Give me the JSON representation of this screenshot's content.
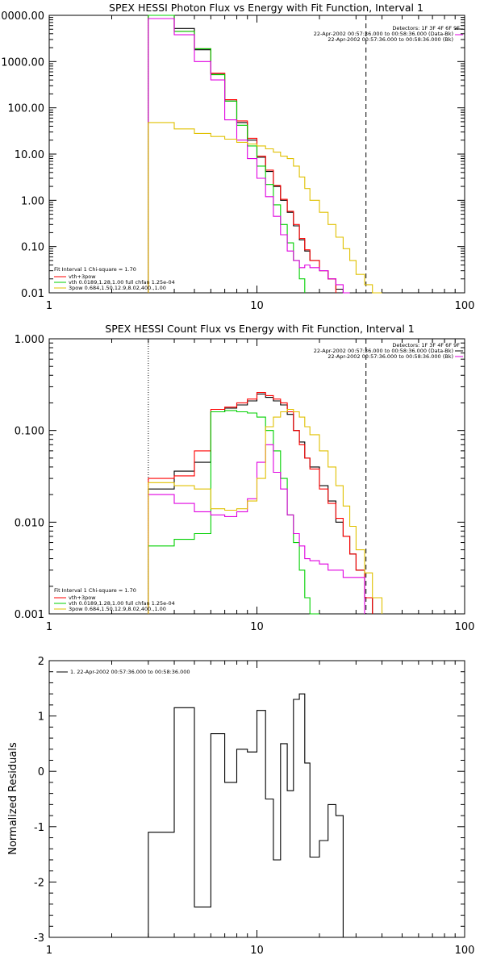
{
  "chart_data": [
    {
      "type": "line",
      "step": true,
      "title": "SPEX HESSI Photon Flux vs Energy with Fit Function, Interval 1",
      "xlabel": "",
      "ylabel": "",
      "xscale": "log",
      "yscale": "log",
      "xlim": [
        1,
        100
      ],
      "ylim": [
        0.01,
        10000
      ],
      "xticks": [
        "1",
        "10",
        "100"
      ],
      "yticks": [
        "0.01",
        "0.10",
        "1.00",
        "10.00",
        "100.00",
        "1000.00",
        "10000.00"
      ],
      "header_lines": [
        "Detectors: 1F 3F 4F 6F 9F",
        "22-Apr-2002 00:57:36.000 to 00:58:36.000 (Data-Bk)",
        "22-Apr-2002 00:57:36.000 to 00:58:36.000 (Bk)"
      ],
      "legend_lines": [
        "Fit Interval 1   Chi-square = 1.70",
        "vth+3pow",
        "vth 0.0189,1.28,1.00  full chfan 1.25e-04",
        "3pow 0.684,1.50,12.9,8.02,400.,1.00"
      ],
      "vlines": [
        {
          "x": 3.0,
          "style": "dotted",
          "color": "#00b000"
        },
        {
          "x": 33.5,
          "style": "dashed",
          "color": "#000000"
        }
      ],
      "edges": [
        3,
        4,
        5,
        6,
        7,
        8,
        9,
        10,
        11,
        12,
        13,
        14,
        15,
        16,
        17,
        18,
        20,
        22,
        24,
        26,
        28,
        30,
        33,
        36,
        40
      ],
      "series": [
        {
          "color": "#000000",
          "values": [
            10000,
            5200,
            1800,
            550,
            140,
            48,
            20,
            8.5,
            4.2,
            2.0,
            1.0,
            0.55,
            0.28,
            0.14,
            0.08,
            0.05,
            0.03,
            0.02,
            0.012,
            0.008,
            null,
            null,
            null,
            null
          ]
        },
        {
          "color": "#ff0000",
          "values": [
            10000,
            4500,
            1900,
            560,
            150,
            52,
            22,
            9,
            4.5,
            2.1,
            1.05,
            0.58,
            0.3,
            0.15,
            0.085,
            0.05,
            0.03,
            0.02,
            null,
            null,
            null,
            null,
            null,
            null
          ]
        },
        {
          "color": "#00d000",
          "values": [
            10000,
            4500,
            1900,
            520,
            140,
            42,
            15,
            5.5,
            2.2,
            0.8,
            0.3,
            0.12,
            0.05,
            0.02,
            null,
            null,
            null,
            null,
            null,
            null,
            null,
            null,
            null,
            null
          ]
        },
        {
          "color": "#e000e0",
          "values": [
            8500,
            3800,
            1000,
            400,
            55,
            20,
            8,
            3,
            1.2,
            0.45,
            0.18,
            0.08,
            0.05,
            0.035,
            0.04,
            0.035,
            0.03,
            0.02,
            0.015,
            0.01,
            null,
            null,
            null,
            null
          ]
        },
        {
          "color": "#e0c000",
          "values": [
            48,
            35,
            28,
            24,
            21,
            18,
            16.5,
            15,
            13,
            11,
            9,
            8,
            5.5,
            3.2,
            1.8,
            1.0,
            0.55,
            0.3,
            0.16,
            0.09,
            0.05,
            0.025,
            0.015,
            0.01
          ]
        }
      ]
    },
    {
      "type": "line",
      "step": true,
      "title": "SPEX HESSI Count Flux vs Energy with Fit Function, Interval 1",
      "xlabel": "",
      "ylabel": "",
      "xscale": "log",
      "yscale": "log",
      "xlim": [
        1,
        100
      ],
      "ylim": [
        0.001,
        1
      ],
      "xticks": [
        "1",
        "10",
        "100"
      ],
      "yticks": [
        "0.001",
        "0.010",
        "0.100",
        "1.000"
      ],
      "header_lines": [
        "Detectors: 1F 3F 4F 6F 9F",
        "22-Apr-2002 00:57:36.000 to 00:58:36.000 (Data-Bk)",
        "22-Apr-2002 00:57:36.000 to 00:58:36.000 (Bk)"
      ],
      "legend_lines": [
        "Fit Interval 1   Chi-square = 1.70",
        "vth+3pow",
        "vth 0.0189,1.28,1.00  full chfan 1.25e-04",
        "3pow 0.684,1.50,12.9,8.02,400.,1.00"
      ],
      "vlines": [
        {
          "x": 3.0,
          "style": "dotted",
          "color": "#000000"
        },
        {
          "x": 33.5,
          "style": "dashed",
          "color": "#000000"
        }
      ],
      "edges": [
        3,
        4,
        5,
        6,
        7,
        8,
        9,
        10,
        11,
        12,
        13,
        14,
        15,
        16,
        17,
        18,
        20,
        22,
        24,
        26,
        28,
        30,
        33,
        36,
        40
      ],
      "series": [
        {
          "color": "#000000",
          "values": [
            0.023,
            0.036,
            0.045,
            0.16,
            0.175,
            0.19,
            0.21,
            0.25,
            0.23,
            0.21,
            0.19,
            0.15,
            0.1,
            0.075,
            0.05,
            0.04,
            0.025,
            0.017,
            0.01,
            0.007,
            0.0045,
            0.003,
            0.0015,
            null
          ]
        },
        {
          "color": "#ff0000",
          "values": [
            0.03,
            0.032,
            0.06,
            0.17,
            0.18,
            0.2,
            0.22,
            0.26,
            0.24,
            0.22,
            0.2,
            0.16,
            0.1,
            0.07,
            0.05,
            0.038,
            0.023,
            0.016,
            0.011,
            0.007,
            0.0045,
            0.003,
            0.0015,
            null
          ]
        },
        {
          "color": "#00d000",
          "values": [
            0.0055,
            0.0065,
            0.0075,
            0.16,
            0.165,
            0.16,
            0.155,
            0.14,
            0.1,
            0.06,
            0.03,
            0.012,
            0.006,
            0.003,
            0.0015,
            0.001,
            null,
            null,
            null,
            null,
            null,
            null,
            null,
            null
          ]
        },
        {
          "color": "#e000e0",
          "values": [
            0.02,
            0.016,
            0.013,
            0.012,
            0.0115,
            0.013,
            0.018,
            0.045,
            0.07,
            0.035,
            0.023,
            0.012,
            0.0075,
            0.0055,
            0.004,
            0.0038,
            0.0035,
            0.003,
            0.003,
            0.0025,
            0.0025,
            0.0025,
            null,
            null
          ]
        },
        {
          "color": "#e0c000",
          "values": [
            0.027,
            0.025,
            0.023,
            0.014,
            0.0135,
            0.014,
            0.017,
            0.03,
            0.11,
            0.14,
            0.16,
            0.17,
            0.16,
            0.14,
            0.11,
            0.09,
            0.06,
            0.04,
            0.025,
            0.015,
            0.009,
            0.005,
            0.0028,
            0.0015
          ]
        }
      ]
    },
    {
      "type": "line",
      "step": true,
      "title": "",
      "xlabel": "",
      "ylabel": "Normalized Residuals",
      "xscale": "log",
      "yscale": "linear",
      "xlim": [
        1,
        100
      ],
      "ylim": [
        -3,
        2
      ],
      "xticks": [
        "1",
        "10",
        "100"
      ],
      "yticks": [
        "-3",
        "-2",
        "-1",
        "0",
        "1",
        "2"
      ],
      "legend_lines": [
        "1. 22-Apr-2002 00:57:36.000 to 00:58:36.000"
      ],
      "edges": [
        3,
        4,
        5,
        6,
        7,
        8,
        9,
        10,
        11,
        12,
        13,
        14,
        15,
        16,
        17,
        18,
        20,
        22,
        24,
        26,
        28,
        30,
        33
      ],
      "series": [
        {
          "color": "#000000",
          "values": [
            -1.1,
            1.15,
            -2.45,
            0.68,
            -0.2,
            0.4,
            0.35,
            1.1,
            -0.5,
            -1.6,
            0.5,
            -0.35,
            1.3,
            1.4,
            0.15,
            -1.55,
            -1.25,
            -0.6,
            -0.8,
            null,
            null,
            null
          ]
        }
      ]
    }
  ]
}
